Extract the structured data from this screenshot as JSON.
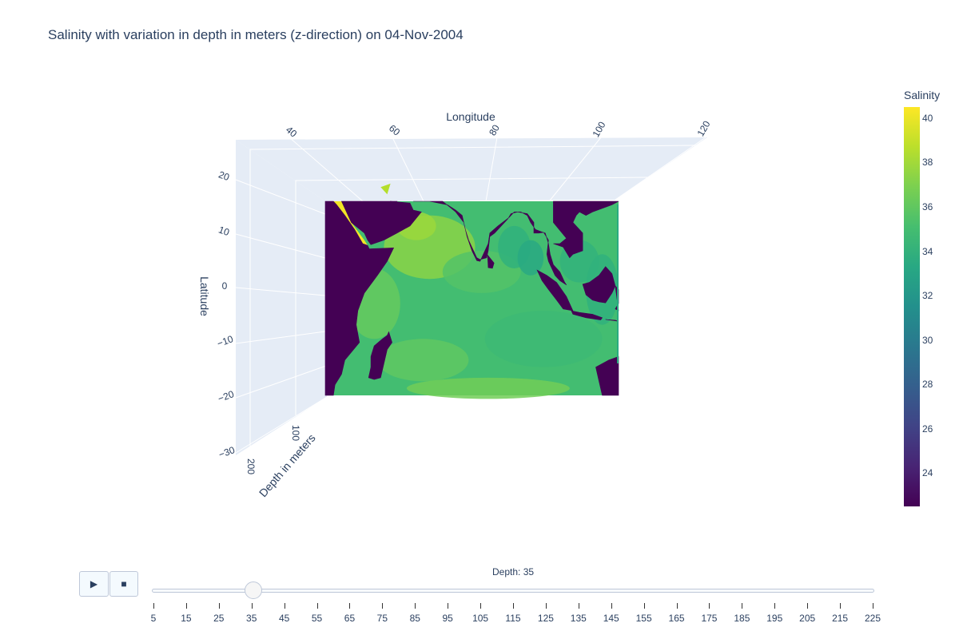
{
  "chart_data": {
    "type": "heatmap",
    "title": "Salinity with variation in depth in meters (z-direction) on 04-Nov-2004",
    "colorscale": "viridis",
    "colorbar": {
      "title": "Salinity",
      "range": [
        22.5,
        40.5
      ],
      "ticks": [
        "40",
        "38",
        "36",
        "34",
        "32",
        "30",
        "28",
        "26",
        "24"
      ]
    },
    "axes": {
      "x": {
        "label": "Longitude",
        "range": [
          30,
          120
        ],
        "ticks": [
          "40",
          "60",
          "80",
          "100",
          "120"
        ]
      },
      "y": {
        "label": "Latitude",
        "range": [
          -30,
          25
        ],
        "ticks": [
          "20",
          "10",
          "0",
          "−10",
          "−20",
          "−30"
        ]
      },
      "z": {
        "label": "Depth in meters",
        "ticks": [
          "100",
          "200"
        ]
      }
    },
    "current_depth": 35,
    "land_value": 22.5,
    "background_salinity": 35.0
  },
  "controls": {
    "play_icon": "▶",
    "stop_icon": "■",
    "slider_prefix": "Depth: ",
    "slider_value": "35",
    "steps": [
      "5",
      "15",
      "25",
      "35",
      "45",
      "55",
      "65",
      "75",
      "85",
      "95",
      "105",
      "115",
      "125",
      "135",
      "145",
      "155",
      "165",
      "175",
      "185",
      "195",
      "205",
      "215",
      "225"
    ],
    "active_step_index": 3
  }
}
